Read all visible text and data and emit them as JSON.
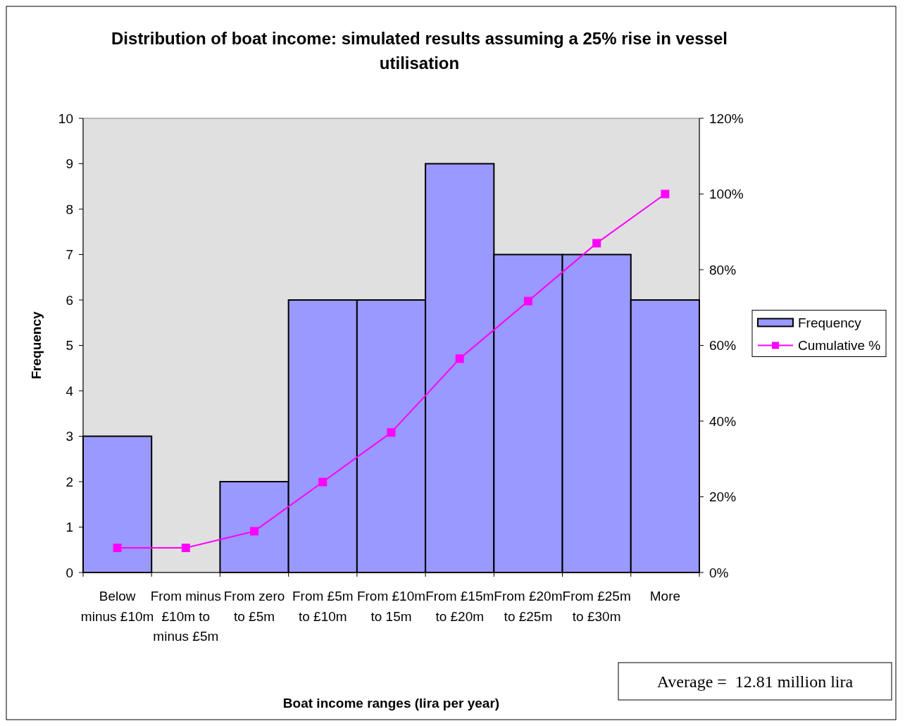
{
  "chart_data": {
    "type": "bar",
    "title": "Distribution of boat income: simulated results assuming a 25% rise in vessel utilisation",
    "xlabel": "Boat income ranges (lira per year)",
    "ylabel": "Frequency",
    "categories": [
      "Below minus £10m",
      "From minus £10m to minus £5m",
      "From zero to £5m",
      "From £5m to £10m",
      "From £10m to 15m",
      "From £15m to £20m",
      "From £20m to £25m",
      "From £25m to £30m",
      "More"
    ],
    "series": [
      {
        "name": "Frequency",
        "color": "#9999ff",
        "values": [
          3,
          0,
          2,
          6,
          6,
          9,
          7,
          7,
          6
        ]
      },
      {
        "name": "Cumulative %",
        "type": "line",
        "axis": "y2",
        "color": "#ff00ff",
        "marker": "square",
        "values": [
          6.5,
          6.5,
          10.9,
          23.9,
          37,
          56.5,
          71.7,
          87,
          100
        ]
      }
    ],
    "ylim": [
      0,
      10
    ],
    "yticks": [
      0,
      1,
      2,
      3,
      4,
      5,
      6,
      7,
      8,
      9,
      10
    ],
    "y2lim": [
      0,
      120
    ],
    "y2ticks": [
      {
        "value": 0,
        "label": "0%"
      },
      {
        "value": 20,
        "label": "20%"
      },
      {
        "value": 40,
        "label": "40%"
      },
      {
        "value": 60,
        "label": "60%"
      },
      {
        "value": 80,
        "label": "80%"
      },
      {
        "value": 100,
        "label": "100%"
      },
      {
        "value": 120,
        "label": "120%"
      }
    ],
    "grid": false,
    "legend": "right",
    "annotations": [
      "Average =  12.81 million lira"
    ]
  }
}
